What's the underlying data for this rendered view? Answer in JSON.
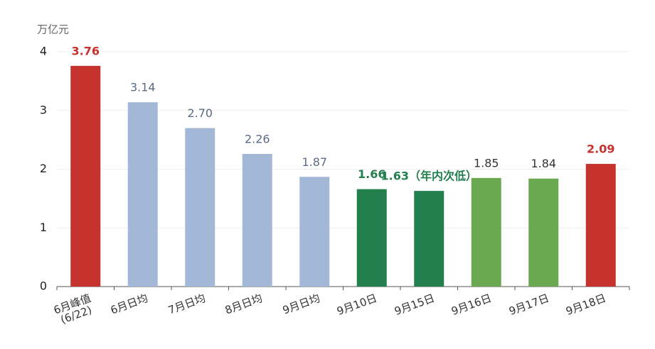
{
  "chart_data": {
    "type": "bar",
    "y_unit": "万亿元",
    "categories": [
      "6月峰值\n(6/22)",
      "6月日均",
      "7月日均",
      "8月日均",
      "9月日均",
      "9月10日",
      "9月15日",
      "9月16日",
      "9月17日",
      "9月18日"
    ],
    "values": [
      3.76,
      3.14,
      2.7,
      2.26,
      1.87,
      1.66,
      1.63,
      1.85,
      1.84,
      2.09
    ],
    "value_labels": [
      "3.76",
      "3.14",
      "2.70",
      "2.26",
      "1.87",
      "1.66",
      "1.63（年内次低）",
      "1.85",
      "1.84",
      "2.09"
    ],
    "colors": [
      "#c6322e",
      "#a3b8d7",
      "#a3b8d7",
      "#a3b8d7",
      "#a3b8d7",
      "#237f4e",
      "#237f4e",
      "#6aa94f",
      "#6aa94f",
      "#c6322e"
    ],
    "value_label_colors": [
      "#c6322e",
      "#5b6b85",
      "#5b6b85",
      "#5b6b85",
      "#5b6b85",
      "#237f4e",
      "#237f4e",
      "#333333",
      "#333333",
      "#c6322e"
    ],
    "value_label_bold": [
      true,
      false,
      false,
      false,
      false,
      true,
      true,
      false,
      false,
      true
    ],
    "ylim": [
      0,
      4
    ],
    "yticks": [
      0,
      1,
      2,
      3,
      4
    ],
    "grid": true
  }
}
